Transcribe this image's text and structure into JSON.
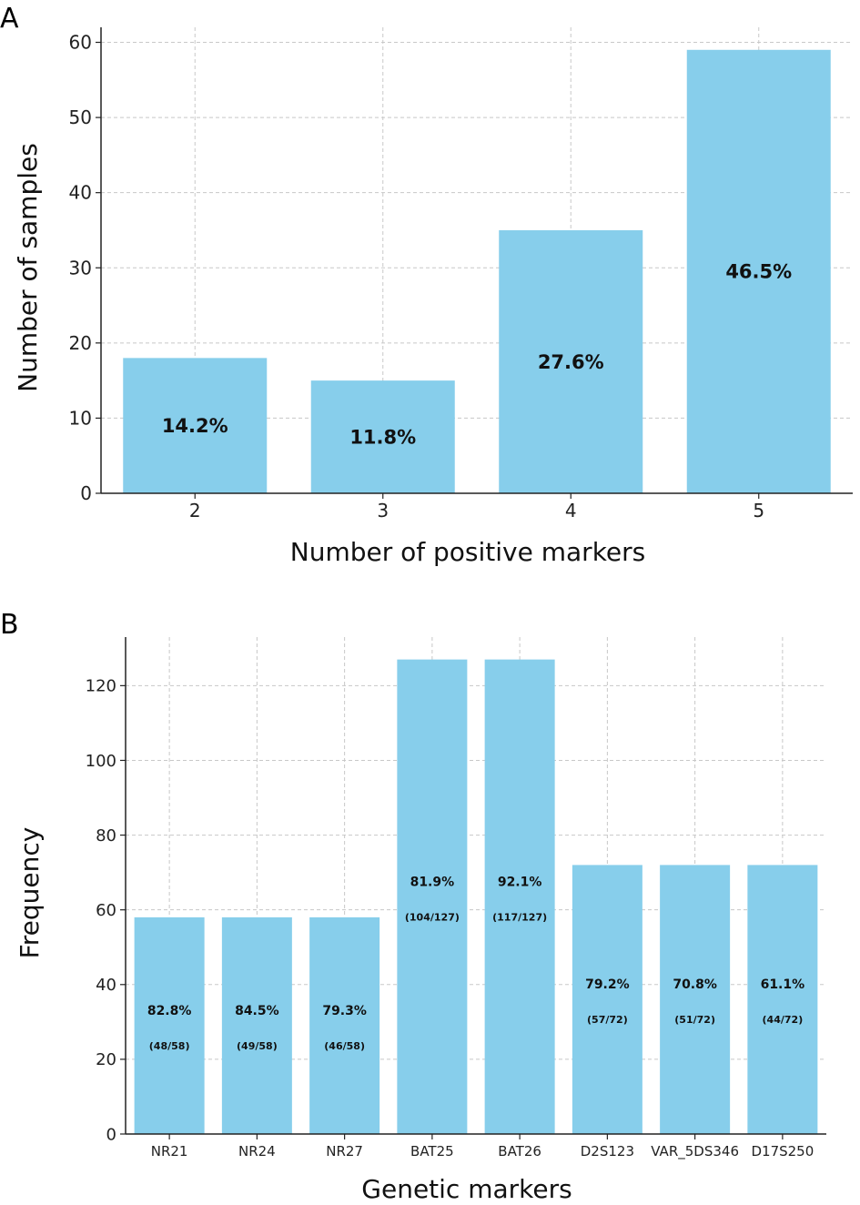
{
  "panels": {
    "a": {
      "letter": "A"
    },
    "b": {
      "letter": "B"
    }
  },
  "chart_data": [
    {
      "type": "bar",
      "categories": [
        "2",
        "3",
        "4",
        "5"
      ],
      "values": [
        18,
        15,
        35,
        59
      ],
      "bar_labels": [
        "14.2%",
        "11.8%",
        "27.6%",
        "46.5%"
      ],
      "xlabel": "Number of positive markers",
      "ylabel": "Number of samples",
      "ylim": [
        0,
        62
      ],
      "yticks": [
        0,
        10,
        20,
        30,
        40,
        50,
        60
      ],
      "grid": true,
      "bar_color": "#87CEEB"
    },
    {
      "type": "bar",
      "categories": [
        "NR21",
        "NR24",
        "NR27",
        "BAT25",
        "BAT26",
        "D2S123",
        "VAR_5DS346",
        "D17S250"
      ],
      "values": [
        58,
        58,
        58,
        127,
        127,
        72,
        72,
        72
      ],
      "bar_labels": [
        "82.8%",
        "84.5%",
        "79.3%",
        "81.9%",
        "92.1%",
        "79.2%",
        "70.8%",
        "61.1%"
      ],
      "bar_sublabels": [
        "(48/58)",
        "(49/58)",
        "(46/58)",
        "(104/127)",
        "(117/127)",
        "(57/72)",
        "(51/72)",
        "(44/72)"
      ],
      "xlabel": "Genetic markers",
      "ylabel": "Frequency",
      "ylim": [
        0,
        133
      ],
      "yticks": [
        0,
        20,
        40,
        60,
        80,
        100,
        120
      ],
      "grid": true,
      "bar_color": "#87CEEB"
    }
  ]
}
